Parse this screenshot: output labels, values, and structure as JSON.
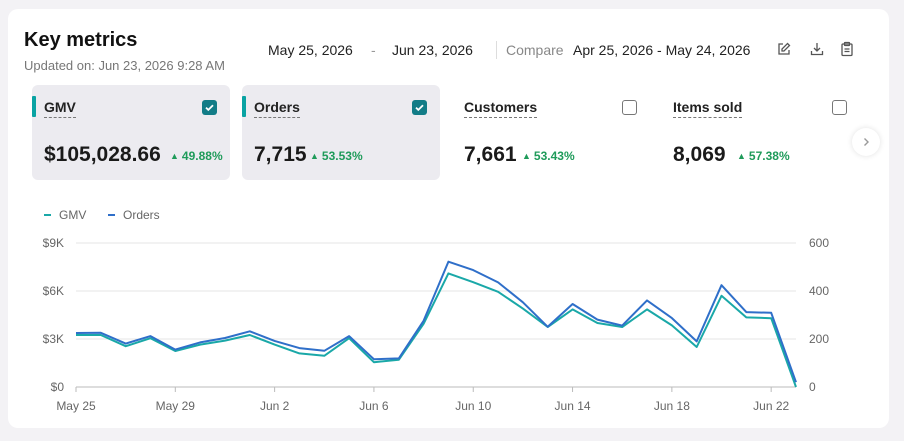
{
  "header": {
    "title": "Key metrics",
    "updated": "Updated on: Jun 23, 2026 9:28 AM",
    "date_start": "May 25, 2026",
    "date_sep": "-",
    "date_end": "Jun 23, 2026",
    "compare_label": "Compare",
    "compare_range": "Apr 25, 2026 - May 24, 2026",
    "icons": [
      "edit-icon",
      "download-icon",
      "clipboard-icon"
    ]
  },
  "metrics": [
    {
      "label": "GMV",
      "value": "$105,028.66",
      "delta": "49.88%",
      "checked": true
    },
    {
      "label": "Orders",
      "value": "7,715",
      "delta": "53.53%",
      "checked": true
    },
    {
      "label": "Customers",
      "value": "7,661",
      "delta": "53.43%",
      "checked": false
    },
    {
      "label": "Items sold",
      "value": "8,069",
      "delta": "57.38%",
      "checked": false
    }
  ],
  "colors": {
    "gmv": "#1aa8a8",
    "orders": "#2f6fc9",
    "accent": "#127c87",
    "positive": "#1f9b5a"
  },
  "chart_data": {
    "type": "line",
    "legend": [
      "GMV",
      "Orders"
    ],
    "x": [
      "May 25",
      "May 26",
      "May 27",
      "May 28",
      "May 29",
      "May 30",
      "May 31",
      "Jun 1",
      "Jun 2",
      "Jun 3",
      "Jun 4",
      "Jun 5",
      "Jun 6",
      "Jun 7",
      "Jun 8",
      "Jun 9",
      "Jun 10",
      "Jun 11",
      "Jun 12",
      "Jun 13",
      "Jun 14",
      "Jun 15",
      "Jun 16",
      "Jun 17",
      "Jun 18",
      "Jun 19",
      "Jun 20",
      "Jun 21",
      "Jun 22",
      "Jun 23"
    ],
    "x_tick_labels": [
      "May 25",
      "May 29",
      "Jun 2",
      "Jun 6",
      "Jun 10",
      "Jun 14",
      "Jun 18",
      "Jun 22"
    ],
    "y_left": {
      "ticks": [
        "$0",
        "$3K",
        "$6K",
        "$9K"
      ],
      "tick_values": [
        0,
        3000,
        6000,
        9000
      ],
      "range": [
        0,
        9000
      ]
    },
    "y_right": {
      "ticks": [
        "0",
        "200",
        "400",
        "600"
      ],
      "tick_values": [
        0,
        200,
        400,
        600
      ],
      "range": [
        0,
        600
      ]
    },
    "series": [
      {
        "name": "GMV",
        "axis": "left",
        "values": [
          3250,
          3250,
          2550,
          3050,
          2250,
          2650,
          2900,
          3250,
          2650,
          2100,
          1950,
          3050,
          1550,
          1700,
          3950,
          7100,
          6550,
          5950,
          4900,
          3750,
          4850,
          4000,
          3750,
          4850,
          3850,
          2500,
          5700,
          4350,
          4300,
          0
        ]
      },
      {
        "name": "Orders",
        "axis": "right",
        "values": [
          225,
          226,
          181,
          212,
          156,
          186,
          204,
          232,
          192,
          162,
          151,
          212,
          116,
          119,
          276,
          522,
          487,
          436,
          353,
          251,
          346,
          281,
          256,
          361,
          287,
          190,
          424,
          312,
          309,
          20
        ]
      }
    ]
  }
}
